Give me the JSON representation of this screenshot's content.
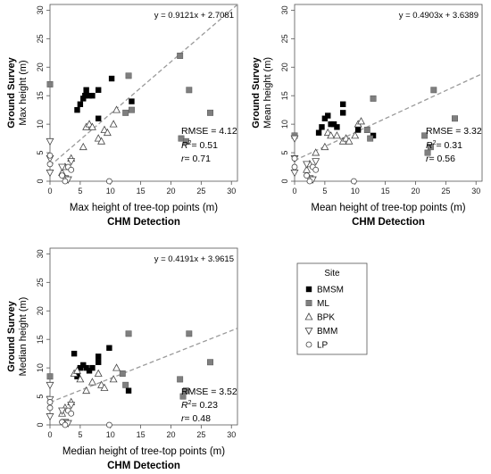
{
  "chart_data": [
    {
      "type": "scatter",
      "panel": "max",
      "ylabel_bold": "Ground Survey",
      "ylabel": "Max height (m)",
      "xlabel": "Max height of tree-top points (m)",
      "xlabel_bold": "CHM Detection",
      "xlim": [
        0,
        31
      ],
      "ylim": [
        0,
        31
      ],
      "xticks": [
        0,
        5,
        10,
        15,
        20,
        25,
        30
      ],
      "yticks": [
        0,
        5,
        10,
        15,
        20,
        25,
        30
      ],
      "equation": "y = 0.9121x + 2.7081",
      "fit": {
        "slope": 0.9121,
        "intercept": 2.7081
      },
      "rmse_text": "RMSE = 4.12",
      "r2_value": "= 0.51",
      "r_value": "= 0.71",
      "series": [
        {
          "name": "BMSM",
          "marker": "filled-square",
          "points": [
            [
              4.5,
              12.5
            ],
            [
              5,
              13.5
            ],
            [
              5.5,
              14.5
            ],
            [
              5.8,
              15
            ],
            [
              6,
              16
            ],
            [
              6.5,
              15
            ],
            [
              7,
              15
            ],
            [
              8,
              11
            ],
            [
              8,
              16
            ],
            [
              10.2,
              18
            ],
            [
              13.5,
              14
            ]
          ]
        },
        {
          "name": "ML",
          "marker": "gray-square",
          "points": [
            [
              0,
              17
            ],
            [
              12.5,
              12
            ],
            [
              13,
              18.5
            ],
            [
              13.5,
              12.5
            ],
            [
              21.5,
              22
            ],
            [
              21.7,
              7.5
            ],
            [
              22.5,
              7
            ],
            [
              23,
              16
            ],
            [
              26.5,
              12
            ]
          ]
        },
        {
          "name": "BPK",
          "marker": "up-triangle",
          "points": [
            [
              2,
              1.5
            ],
            [
              2.5,
              2.5
            ],
            [
              3.5,
              4
            ],
            [
              5.5,
              6
            ],
            [
              6,
              9.5
            ],
            [
              6.5,
              10
            ],
            [
              7,
              9.5
            ],
            [
              8,
              7.5
            ],
            [
              8.5,
              7
            ],
            [
              9,
              9
            ],
            [
              9.5,
              8.5
            ],
            [
              10.5,
              10
            ],
            [
              11,
              12.5
            ]
          ]
        },
        {
          "name": "BMM",
          "marker": "down-triangle",
          "points": [
            [
              0,
              7
            ],
            [
              0,
              4
            ],
            [
              0,
              1.5
            ],
            [
              2,
              2.5
            ],
            [
              2.5,
              0.5
            ],
            [
              3,
              0.3
            ],
            [
              3.5,
              3.5
            ]
          ]
        },
        {
          "name": "LP",
          "marker": "open-circle",
          "points": [
            [
              0,
              4.5
            ],
            [
              0,
              3
            ],
            [
              2,
              1
            ],
            [
              2.5,
              0
            ],
            [
              3,
              2.5
            ],
            [
              3.5,
              2
            ],
            [
              9.8,
              0
            ]
          ]
        }
      ]
    },
    {
      "type": "scatter",
      "panel": "mean",
      "ylabel_bold": "Ground Survey",
      "ylabel": "Mean height (m)",
      "xlabel": "Mean height of tree-top points (m)",
      "xlabel_bold": "CHM Detection",
      "xlim": [
        0,
        31
      ],
      "ylim": [
        0,
        31
      ],
      "xticks": [
        0,
        5,
        10,
        15,
        20,
        25,
        30
      ],
      "yticks": [
        0,
        5,
        10,
        15,
        20,
        25,
        30
      ],
      "equation": "y = 0.4903x + 3.6389",
      "fit": {
        "slope": 0.4903,
        "intercept": 3.6389
      },
      "rmse_text": "RMSE = 3.32",
      "r2_value": "= 0.31",
      "r_value": "= 0.56",
      "series": [
        {
          "name": "BMSM",
          "marker": "filled-square",
          "points": [
            [
              4,
              8.5
            ],
            [
              4.5,
              9.5
            ],
            [
              5,
              11
            ],
            [
              5.5,
              11.5
            ],
            [
              6,
              10
            ],
            [
              6.5,
              10
            ],
            [
              7,
              9.5
            ],
            [
              8,
              12
            ],
            [
              8,
              13.5
            ],
            [
              10.5,
              9
            ],
            [
              13,
              8
            ]
          ]
        },
        {
          "name": "ML",
          "marker": "gray-square",
          "points": [
            [
              0,
              8
            ],
            [
              12,
              9
            ],
            [
              12.5,
              7.5
            ],
            [
              13,
              14.5
            ],
            [
              21.5,
              8
            ],
            [
              22,
              5
            ],
            [
              22.5,
              6
            ],
            [
              23,
              16
            ],
            [
              26.5,
              11
            ]
          ]
        },
        {
          "name": "BPK",
          "marker": "up-triangle",
          "points": [
            [
              2,
              2
            ],
            [
              2.5,
              3
            ],
            [
              3.5,
              5
            ],
            [
              5,
              6
            ],
            [
              5.5,
              8.5
            ],
            [
              6,
              8
            ],
            [
              7,
              8
            ],
            [
              8,
              7
            ],
            [
              8.5,
              7.5
            ],
            [
              9,
              7
            ],
            [
              10,
              8
            ],
            [
              10.5,
              10
            ],
            [
              11,
              10.5
            ]
          ]
        },
        {
          "name": "BMM",
          "marker": "down-triangle",
          "points": [
            [
              0,
              7.5
            ],
            [
              0,
              4
            ],
            [
              0,
              1.5
            ],
            [
              2,
              3
            ],
            [
              2.5,
              0.5
            ],
            [
              3,
              0.3
            ],
            [
              3.5,
              3.5
            ]
          ]
        },
        {
          "name": "LP",
          "marker": "open-circle",
          "points": [
            [
              0,
              4
            ],
            [
              0,
              2.5
            ],
            [
              2,
              1
            ],
            [
              2.5,
              0
            ],
            [
              3,
              2.5
            ],
            [
              3.5,
              2
            ],
            [
              9.8,
              0
            ]
          ]
        }
      ]
    },
    {
      "type": "scatter",
      "panel": "median",
      "ylabel_bold": "Ground Survey",
      "ylabel": "Median height (m)",
      "xlabel": "Median height of tree-top points (m)",
      "xlabel_bold": "CHM Detection",
      "xlim": [
        0,
        31
      ],
      "ylim": [
        0,
        31
      ],
      "xticks": [
        0,
        5,
        10,
        15,
        20,
        25,
        30
      ],
      "yticks": [
        0,
        5,
        10,
        15,
        20,
        25,
        30
      ],
      "equation": "y = 0.4191x + 3.9615",
      "fit": {
        "slope": 0.4191,
        "intercept": 3.9615
      },
      "rmse_text": "RMSE = 3.52",
      "r2_value": "= 0.23",
      "r_value": "= 0.48",
      "series": [
        {
          "name": "BMSM",
          "marker": "filled-square",
          "points": [
            [
              4,
              12.5
            ],
            [
              4.5,
              8.5
            ],
            [
              5,
              10
            ],
            [
              5.5,
              10.5
            ],
            [
              6,
              10
            ],
            [
              6.5,
              9.5
            ],
            [
              7,
              10
            ],
            [
              8,
              11
            ],
            [
              8,
              12
            ],
            [
              9.8,
              13.5
            ],
            [
              13,
              6
            ]
          ]
        },
        {
          "name": "ML",
          "marker": "gray-square",
          "points": [
            [
              0,
              8.5
            ],
            [
              12,
              9
            ],
            [
              12.5,
              7
            ],
            [
              13,
              16
            ],
            [
              21.5,
              8
            ],
            [
              22,
              5
            ],
            [
              22.5,
              6
            ],
            [
              23,
              16
            ],
            [
              26.5,
              11
            ]
          ]
        },
        {
          "name": "BPK",
          "marker": "up-triangle",
          "points": [
            [
              2,
              2
            ],
            [
              2.5,
              3
            ],
            [
              3.5,
              4
            ],
            [
              4,
              9
            ],
            [
              4.5,
              9.5
            ],
            [
              5,
              8
            ],
            [
              6,
              6
            ],
            [
              7,
              7.5
            ],
            [
              8,
              9
            ],
            [
              8.5,
              7
            ],
            [
              9,
              6.5
            ],
            [
              10.5,
              8
            ],
            [
              11,
              10
            ]
          ]
        },
        {
          "name": "BMM",
          "marker": "down-triangle",
          "points": [
            [
              0,
              7
            ],
            [
              0,
              4.5
            ],
            [
              0,
              1.5
            ],
            [
              2,
              2.5
            ],
            [
              2.5,
              0.5
            ],
            [
              3,
              0.3
            ],
            [
              3.5,
              3.5
            ]
          ]
        },
        {
          "name": "LP",
          "marker": "open-circle",
          "points": [
            [
              0,
              4
            ],
            [
              0,
              3
            ],
            [
              2,
              0.5
            ],
            [
              2.5,
              0
            ],
            [
              3,
              2.5
            ],
            [
              3.5,
              2
            ],
            [
              9.8,
              0
            ]
          ]
        }
      ]
    }
  ],
  "legend": {
    "title": "Site",
    "placement": "bottom-right",
    "entries": [
      {
        "label": "BMSM",
        "marker": "filled-square"
      },
      {
        "label": "ML",
        "marker": "gray-square"
      },
      {
        "label": "BPK",
        "marker": "up-triangle"
      },
      {
        "label": "BMM",
        "marker": "down-triangle"
      },
      {
        "label": "LP",
        "marker": "open-circle"
      }
    ]
  },
  "colors": {
    "filled_square": "#000000",
    "gray_square": "#7f7f7f",
    "outline": "#444444",
    "fit_line": "#9a9a9a",
    "axis": "#555555"
  }
}
